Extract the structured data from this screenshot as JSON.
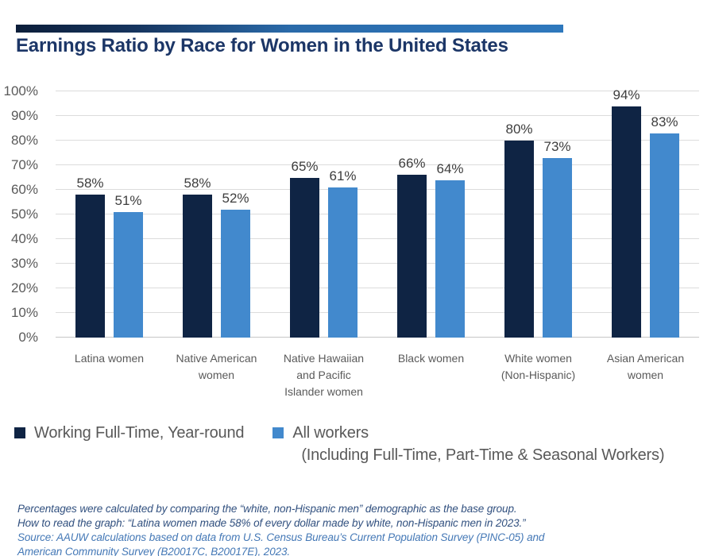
{
  "header": {
    "title": "Earnings Ratio by Race for Women in the United States"
  },
  "chart_data": {
    "type": "bar",
    "title": "Earnings Ratio by Race for Women in the United States",
    "categories": [
      "Latina women",
      "Native American women",
      "Native Hawaiian and Pacific Islander women",
      "Black women",
      "White women (Non-Hispanic)",
      "Asian American women"
    ],
    "category_lines": [
      [
        "Latina women"
      ],
      [
        "Native American",
        "women"
      ],
      [
        "Native Hawaiian",
        "and Pacific",
        "Islander women"
      ],
      [
        "Black women"
      ],
      [
        "White women",
        "(Non-Hispanic)"
      ],
      [
        "Asian American",
        "women"
      ]
    ],
    "series": [
      {
        "name": "Working Full-Time, Year-round",
        "color": "#0f2444",
        "values": [
          58,
          58,
          65,
          66,
          80,
          94
        ]
      },
      {
        "name": "All workers",
        "color": "#4289cd",
        "values": [
          51,
          52,
          61,
          64,
          73,
          83
        ]
      }
    ],
    "value_suffix": "%",
    "ylim": [
      0,
      100
    ],
    "ytick_values": [
      0,
      10,
      20,
      30,
      40,
      50,
      60,
      70,
      80,
      90,
      100
    ],
    "ytick_labels": [
      "0%",
      "10%",
      "20%",
      "30%",
      "40%",
      "50%",
      "60%",
      "70%",
      "80%",
      "90%",
      "100%"
    ],
    "grid": true,
    "legend_position": "bottom"
  },
  "legend": {
    "items": [
      {
        "label": "Working Full-Time, Year-round",
        "color": "#0f2444"
      },
      {
        "label": "All workers",
        "sublabel": "(Including Full-Time, Part-Time & Seasonal Workers)",
        "color": "#4289cd"
      }
    ]
  },
  "footnotes": {
    "line1": "Percentages were calculated by comparing the “white, non-Hispanic men” demographic as the base group.",
    "line2": "How to read the graph: “Latina women made 58% of every dollar made by white, non-Hispanic men in 2023.”",
    "source_line1": "Source: AAUW calculations based on data from U.S. Census Bureau’s Current Population Survey (PINC-05) and",
    "source_line2": "American Community Survey (B20017C, B20017E), 2023."
  },
  "colors": {
    "accent_gradient_start": "#0c1e3a",
    "accent_gradient_end": "#2e78bd",
    "navy": "#0f2444",
    "blue": "#4289cd",
    "title_navy": "#1c3667",
    "gridline": "#dcdcdc",
    "axis_text": "#5a5a5a",
    "value_text": "#3d3d3d",
    "footnote_navy": "#31507f",
    "footnote_blue": "#4478b6"
  }
}
